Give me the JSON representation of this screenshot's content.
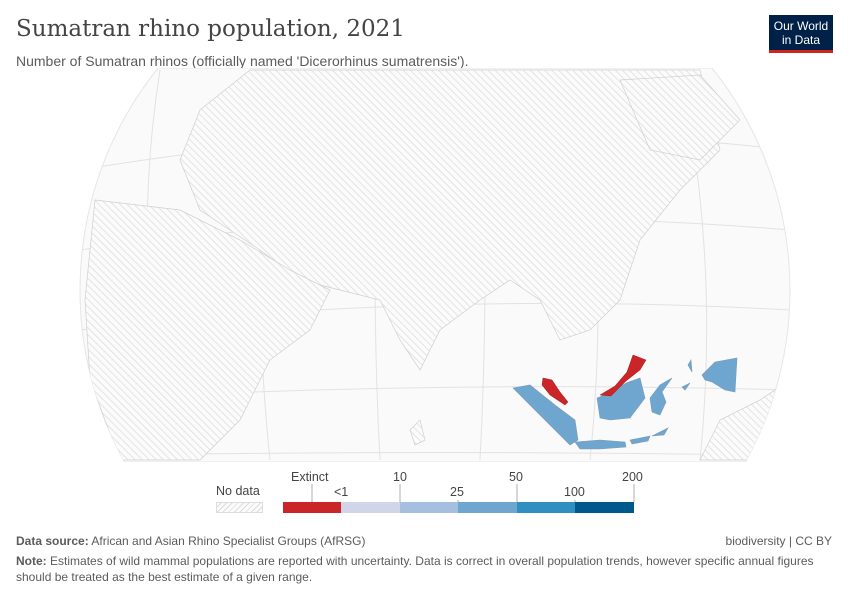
{
  "header": {
    "title": "Sumatran rhino population, 2021",
    "subtitle": "Number of Sumatran rhinos (officially named 'Dicerorhinus sumatrensis').",
    "logo": "Our World in Data"
  },
  "map": {
    "countries": [
      {
        "name": "Indonesia",
        "category": "50-100",
        "color": "#6fa6cf"
      },
      {
        "name": "Malaysia",
        "category": "Extinct",
        "color": "#cc2529"
      }
    ]
  },
  "legend": {
    "no_data": "No data",
    "bins": [
      {
        "label": "Extinct",
        "color": "#cc2529"
      },
      {
        "label": "<1",
        "color": "#d2d4ea"
      },
      {
        "label": "",
        "color": "#a6bfdf"
      },
      {
        "label": "",
        "color": "#6fa6cf"
      },
      {
        "label": "",
        "color": "#2e8fc0"
      },
      {
        "label": "",
        "color": "#00598d"
      }
    ],
    "ticks_top": [
      "10",
      "50",
      "200"
    ],
    "ticks_bottom": [
      "25",
      "100"
    ]
  },
  "footer": {
    "source_label": "Data source:",
    "source": "African and Asian Rhino Specialist Groups (AfRSG)",
    "right": "biodiversity | CC BY",
    "note_label": "Note:",
    "note": "Estimates of wild mammal populations are reported with uncertainty. Data is correct in overall population trends, however specific annual figures should be treated as the best estimate of a given range."
  }
}
